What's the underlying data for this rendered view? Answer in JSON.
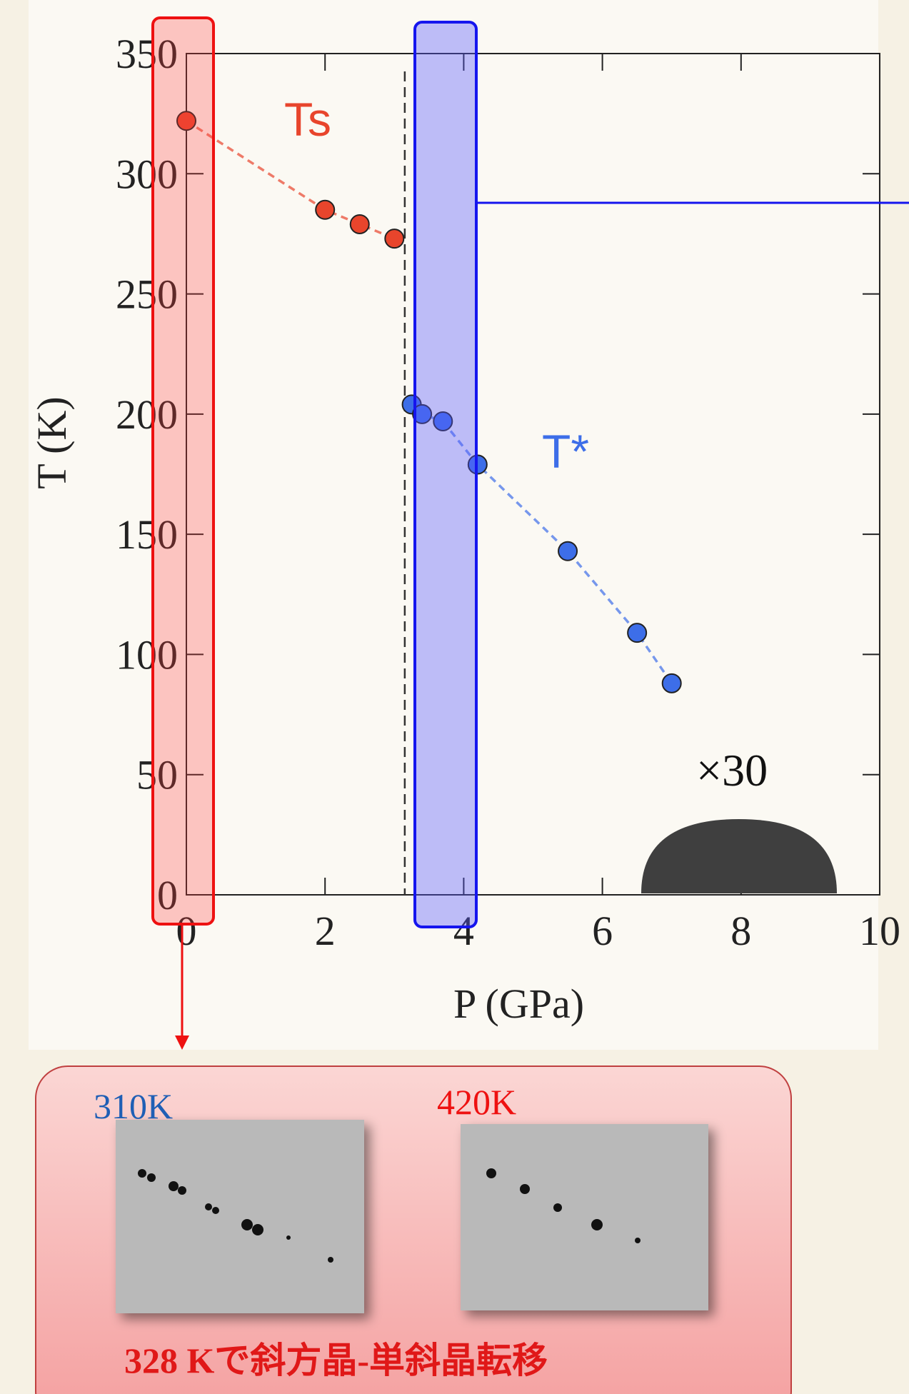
{
  "chart_data": {
    "type": "scatter",
    "xlabel": "P (GPa)",
    "ylabel": "T (K)",
    "xlim": [
      0,
      10
    ],
    "xticks": [
      0,
      2,
      4,
      6,
      8,
      10
    ],
    "ylim": [
      0,
      350
    ],
    "yticks": [
      0,
      50,
      100,
      150,
      200,
      250,
      300,
      350
    ],
    "series": [
      {
        "name": "Ts",
        "color": "#e8452c",
        "x": [
          0,
          2,
          2.5,
          3
        ],
        "values": [
          322,
          285,
          279,
          273
        ]
      },
      {
        "name": "T*",
        "color": "#3d6ee8",
        "x": [
          3.25,
          3.4,
          3.7,
          4.2,
          5.5,
          6.5,
          7
        ],
        "values": [
          204,
          200,
          197,
          179,
          143,
          109,
          88
        ]
      }
    ],
    "reference_lines": [
      {
        "x": 3.15
      }
    ],
    "annotation": "×30"
  },
  "panel": {
    "labels": [
      "310K",
      "420K"
    ],
    "caption": "328 Kで斜方晶-単斜晶転移"
  }
}
